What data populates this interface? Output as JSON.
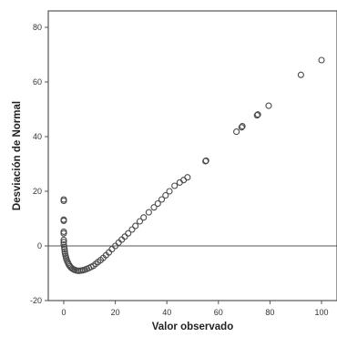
{
  "chart_data": {
    "type": "scatter",
    "title": "",
    "xlabel": "Valor observado",
    "ylabel": "Desviación de Normal",
    "xlim": [
      -6,
      106
    ],
    "ylim": [
      -20,
      86
    ],
    "x_ticks": [
      0,
      20,
      40,
      60,
      80,
      100
    ],
    "y_ticks": [
      -20,
      0,
      20,
      40,
      60,
      80
    ],
    "grid": false,
    "reference_line_y": 0,
    "marker": "open-circle",
    "colors": {
      "marker": "#4a4a4a",
      "frame": "#555555",
      "reference_line": "#555555",
      "background": "#ffffff"
    },
    "points": [
      [
        0,
        17
      ],
      [
        0,
        16.5
      ],
      [
        0,
        9.6
      ],
      [
        0,
        9.2
      ],
      [
        0,
        5.2
      ],
      [
        0,
        4.6
      ],
      [
        0,
        2.2
      ],
      [
        0,
        1.4
      ],
      [
        0,
        0.5
      ],
      [
        0.2,
        -0.4
      ],
      [
        0.3,
        -1.2
      ],
      [
        0.4,
        -2
      ],
      [
        0.5,
        -2.8
      ],
      [
        0.7,
        -3.6
      ],
      [
        0.9,
        -4.3
      ],
      [
        1.1,
        -5
      ],
      [
        1.4,
        -5.7
      ],
      [
        1.7,
        -6.3
      ],
      [
        2,
        -6.9
      ],
      [
        2.4,
        -7.4
      ],
      [
        2.8,
        -7.9
      ],
      [
        3.3,
        -8.3
      ],
      [
        3.8,
        -8.6
      ],
      [
        4.3,
        -8.8
      ],
      [
        4.9,
        -9
      ],
      [
        5.5,
        -9.1
      ],
      [
        6.1,
        -9.1
      ],
      [
        6.8,
        -9
      ],
      [
        7.5,
        -8.9
      ],
      [
        8.2,
        -8.7
      ],
      [
        9,
        -8.4
      ],
      [
        9.8,
        -8.1
      ],
      [
        10.6,
        -7.7
      ],
      [
        11.5,
        -7.3
      ],
      [
        12.4,
        -6.6
      ],
      [
        13.3,
        -5.9
      ],
      [
        14.3,
        -5.2
      ],
      [
        15.3,
        -4.4
      ],
      [
        16.4,
        -3.4
      ],
      [
        17.5,
        -2.4
      ],
      [
        18.7,
        -1.2
      ],
      [
        20,
        0
      ],
      [
        21.3,
        1.2
      ],
      [
        22.5,
        2.3
      ],
      [
        23.7,
        3.4
      ],
      [
        25,
        4.6
      ],
      [
        26.5,
        6
      ],
      [
        27.8,
        7.3
      ],
      [
        29.5,
        9
      ],
      [
        31,
        10.4
      ],
      [
        33,
        12.3
      ],
      [
        35,
        14.1
      ],
      [
        36.5,
        15.5
      ],
      [
        38,
        17
      ],
      [
        39.5,
        18.5
      ],
      [
        41,
        20
      ],
      [
        43,
        22
      ],
      [
        45,
        23.2
      ],
      [
        46.5,
        24.1
      ],
      [
        48,
        25.1
      ],
      [
        55,
        31
      ],
      [
        55.2,
        31.2
      ],
      [
        67,
        41.8
      ],
      [
        69,
        43.4
      ],
      [
        69.3,
        43.8
      ],
      [
        75,
        47.8
      ],
      [
        75.3,
        48.1
      ],
      [
        79.5,
        51.3
      ],
      [
        92,
        62.6
      ],
      [
        100,
        68
      ]
    ]
  }
}
